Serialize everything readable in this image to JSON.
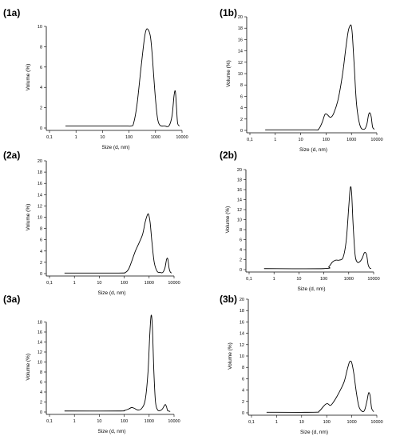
{
  "chart_data": [
    {
      "type": "line",
      "panel_label": "(1a)",
      "xlabel": "Size (d, nm)",
      "ylabel": "Volume (%)",
      "xscale": "log",
      "xlim": [
        0.1,
        10000
      ],
      "ylim": [
        0,
        10
      ],
      "xticks": [
        0.1,
        1,
        10,
        100,
        1000,
        10000
      ],
      "xtick_labels": [
        "0,1",
        "1",
        "10",
        "100",
        "1000",
        "10000"
      ],
      "yticks": [
        0,
        2,
        4,
        6,
        8,
        10
      ],
      "ytick_labels": [
        "0",
        "2",
        "4",
        "6",
        "8",
        "10"
      ],
      "x": [
        0.4,
        50,
        120,
        150,
        200,
        280,
        380,
        450,
        550,
        650,
        750,
        850,
        1000,
        1200,
        1500,
        2200,
        3200,
        4200,
        5000,
        5600,
        6200,
        6800,
        8000
      ],
      "y": [
        0.2,
        0.2,
        0.2,
        0.5,
        2.3,
        5.8,
        8.8,
        9.7,
        9.6,
        8.9,
        7.2,
        5.2,
        2.8,
        0.9,
        0.25,
        0.2,
        0.2,
        1.2,
        3.2,
        3.6,
        2.0,
        0.5,
        0.2
      ]
    },
    {
      "type": "line",
      "panel_label": "(1b)",
      "xlabel": "Size (d, nm)",
      "ylabel": "Volume (%)",
      "xscale": "log",
      "xlim": [
        0.1,
        10000
      ],
      "ylim": [
        0,
        20
      ],
      "xticks": [
        0.1,
        1,
        10,
        100,
        1000,
        10000
      ],
      "xtick_labels": [
        "0,1",
        "1",
        "10",
        "100",
        "1000",
        "10000"
      ],
      "yticks": [
        0,
        2,
        4,
        6,
        8,
        10,
        12,
        14,
        16,
        18,
        20
      ],
      "ytick_labels": [
        "0",
        "2",
        "4",
        "6",
        "8",
        "10",
        "12",
        "14",
        "16",
        "18",
        "20"
      ],
      "x": [
        0.4,
        30,
        50,
        70,
        90,
        110,
        150,
        200,
        300,
        450,
        600,
        750,
        900,
        1000,
        1100,
        1300,
        1600,
        2200,
        3200,
        4000,
        4700,
        5300,
        6000,
        6800,
        8000
      ],
      "y": [
        0.1,
        0.1,
        0.2,
        1.4,
        2.8,
        2.8,
        2.3,
        3.0,
        5.5,
        10.0,
        14.5,
        17.5,
        18.5,
        18.3,
        16.5,
        11.0,
        4.5,
        0.8,
        0.2,
        1.0,
        2.7,
        3.1,
        2.4,
        0.6,
        0.2
      ]
    },
    {
      "type": "line",
      "panel_label": "(2a)",
      "xlabel": "Size (d, nm)",
      "ylabel": "Volume (%)",
      "xscale": "log",
      "xlim": [
        0.1,
        10000
      ],
      "ylim": [
        0,
        20
      ],
      "xticks": [
        0.1,
        1,
        10,
        100,
        1000,
        10000
      ],
      "xtick_labels": [
        "0,1",
        "1",
        "10",
        "100",
        "1000",
        "10000"
      ],
      "yticks": [
        0,
        2,
        4,
        6,
        8,
        10,
        12,
        14,
        16,
        18,
        20
      ],
      "ytick_labels": [
        "0",
        "2",
        "4",
        "6",
        "8",
        "10",
        "12",
        "14",
        "16",
        "18",
        "20"
      ],
      "x": [
        0.4,
        60,
        110,
        150,
        200,
        280,
        400,
        550,
        700,
        850,
        950,
        1100,
        1300,
        1600,
        2100,
        2800,
        3500,
        4300,
        5000,
        5600,
        6300,
        7000,
        8000
      ],
      "y": [
        0.1,
        0.1,
        0.2,
        0.8,
        2.2,
        4.0,
        5.5,
        7.0,
        9.2,
        10.4,
        10.5,
        9.0,
        5.5,
        2.0,
        0.4,
        0.2,
        0.2,
        1.0,
        2.5,
        2.6,
        1.0,
        0.3,
        0.1
      ]
    },
    {
      "type": "line",
      "panel_label": "(2b)",
      "xlabel": "Size (d, nm)",
      "ylabel": "Volume (%)",
      "xscale": "log",
      "xlim": [
        0.1,
        10000
      ],
      "ylim": [
        0,
        20
      ],
      "xticks": [
        0.1,
        1,
        10,
        100,
        1000,
        10000
      ],
      "xtick_labels": [
        "0,1",
        "1",
        "10",
        "100",
        "1000",
        "10000"
      ],
      "yticks": [
        0,
        2,
        4,
        6,
        8,
        10,
        12,
        14,
        16,
        18,
        20
      ],
      "ytick_labels": [
        "0",
        "2",
        "4",
        "6",
        "8",
        "10",
        "12",
        "14",
        "16",
        "18",
        "20"
      ],
      "x": [
        0.4,
        100,
        160,
        220,
        300,
        420,
        600,
        800,
        1000,
        1150,
        1300,
        1500,
        1800,
        2200,
        2800,
        3500,
        4300,
        5200,
        6000,
        7000,
        8000
      ],
      "y": [
        0.2,
        0.2,
        0.6,
        1.5,
        1.9,
        1.9,
        2.5,
        6.0,
        12.5,
        16.3,
        15.5,
        9.0,
        3.0,
        1.5,
        1.6,
        2.3,
        3.4,
        3.0,
        1.0,
        0.3,
        0.2
      ]
    },
    {
      "type": "line",
      "panel_label": "(3a)",
      "xlabel": "Size (d, nm)",
      "ylabel": "Volume (%)",
      "xscale": "log",
      "xlim": [
        0.1,
        10000
      ],
      "ylim": [
        0,
        20
      ],
      "xticks": [
        0.1,
        1,
        10,
        100,
        1000,
        10000
      ],
      "xtick_labels": [
        "0,1",
        "1",
        "10",
        "100",
        "1000",
        "10000"
      ],
      "yticks": [
        0,
        2,
        4,
        6,
        8,
        10,
        12,
        14,
        16,
        18
      ],
      "ytick_labels": [
        "0",
        "2",
        "4",
        "6",
        "8",
        "10",
        "12",
        "14",
        "16",
        "18"
      ],
      "x": [
        0.4,
        60,
        100,
        150,
        200,
        260,
        350,
        500,
        700,
        900,
        1050,
        1200,
        1350,
        1550,
        1800,
        2200,
        2800,
        3400,
        4000,
        4500,
        5000,
        5500,
        6000,
        7000
      ],
      "y": [
        0.2,
        0.2,
        0.3,
        0.6,
        0.9,
        0.7,
        0.4,
        0.7,
        2.5,
        8.0,
        15.0,
        19.3,
        17.0,
        8.0,
        2.0,
        0.4,
        0.3,
        0.6,
        1.2,
        1.5,
        1.0,
        0.3,
        0.2,
        0.1
      ]
    },
    {
      "type": "line",
      "panel_label": "(3b)",
      "xlabel": "Size (d, nm)",
      "ylabel": "Volume (%)",
      "xscale": "log",
      "xlim": [
        0.1,
        10000
      ],
      "ylim": [
        0,
        20
      ],
      "xticks": [
        0.1,
        1,
        10,
        100,
        1000,
        10000
      ],
      "xtick_labels": [
        "0,1",
        "1",
        "10",
        "100",
        "1000",
        "10000"
      ],
      "yticks": [
        0,
        2,
        4,
        6,
        8,
        10,
        12,
        14,
        16,
        18,
        20
      ],
      "ytick_labels": [
        "0",
        "2",
        "4",
        "6",
        "8",
        "10",
        "12",
        "14",
        "16",
        "18",
        "20"
      ],
      "x": [
        0.4,
        30,
        50,
        70,
        90,
        110,
        140,
        180,
        250,
        350,
        500,
        650,
        800,
        900,
        1000,
        1200,
        1500,
        1900,
        2500,
        3200,
        4000,
        4700,
        5400,
        6200,
        7500
      ],
      "y": [
        0.1,
        0.1,
        0.3,
        1.0,
        1.5,
        1.6,
        1.3,
        1.8,
        2.8,
        4.0,
        5.5,
        7.5,
        8.9,
        9.1,
        8.8,
        7.0,
        3.8,
        1.2,
        0.3,
        0.4,
        2.0,
        3.5,
        3.0,
        0.8,
        0.2
      ]
    }
  ]
}
